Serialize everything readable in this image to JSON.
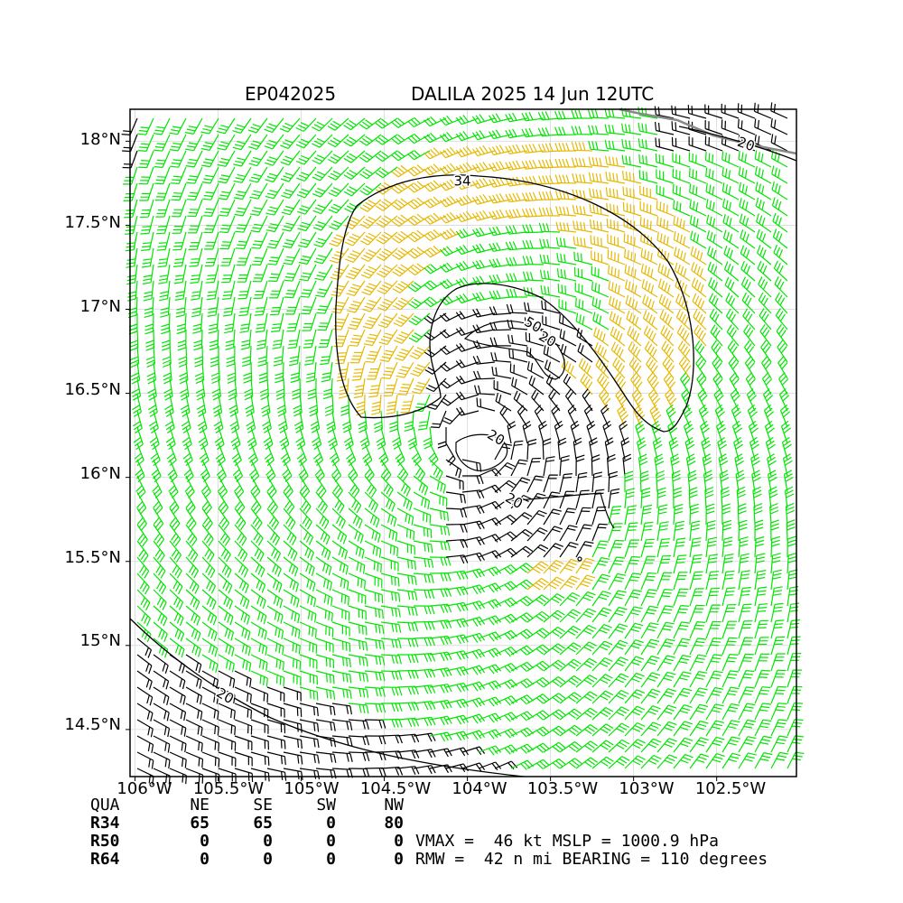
{
  "header": {
    "storm_id": "EP042025",
    "storm_title": "DALILA 2025 14 Jun 12UTC"
  },
  "axes": {
    "lat_labels": [
      "18°N",
      "17.5°N",
      "17°N",
      "16.5°N",
      "16°N",
      "15.5°N",
      "15°N",
      "14.5°N"
    ],
    "lat_values": [
      18,
      17.5,
      17,
      16.5,
      16,
      15.5,
      15,
      14.5
    ],
    "lon_labels": [
      "106°W",
      "105.5°W",
      "105°W",
      "104.5°W",
      "104°W",
      "103.5°W",
      "103°W",
      "102.5°W"
    ],
    "lon_values": [
      -106,
      -105.5,
      -105,
      -104.5,
      -104,
      -103.5,
      -103,
      -102.5
    ],
    "lon_range": [
      -106.03,
      -102.02
    ],
    "lat_range": [
      14.22,
      18.19
    ]
  },
  "map": {
    "storm_center": {
      "lon": -104.06,
      "lat": 16.17
    },
    "contour_labels": [
      "34",
      "50",
      "20",
      "20",
      "20",
      "20",
      "20"
    ],
    "colors": {
      "weak_barbs": "#000000",
      "ts_barbs": "#00e600",
      "strong_barbs": "#e6b800",
      "coastline": "#888888",
      "contour": "#000000",
      "grid": "#d8d8d8"
    }
  },
  "radii_table": {
    "header": [
      "QUA",
      "NE",
      "SE",
      "SW",
      "NW"
    ],
    "rows": [
      {
        "label": "R34",
        "ne": "65",
        "se": "65",
        "sw": "0",
        "nw": "80"
      },
      {
        "label": "R50",
        "ne": "0",
        "se": "0",
        "sw": "0",
        "nw": "0"
      },
      {
        "label": "R64",
        "ne": "0",
        "se": "0",
        "sw": "0",
        "nw": "0"
      }
    ]
  },
  "stats": {
    "line1": "VMAX =  46 kt MSLP = 1000.9 hPa",
    "line2": "RMW =  42 n mi BEARING = 110 degrees"
  }
}
